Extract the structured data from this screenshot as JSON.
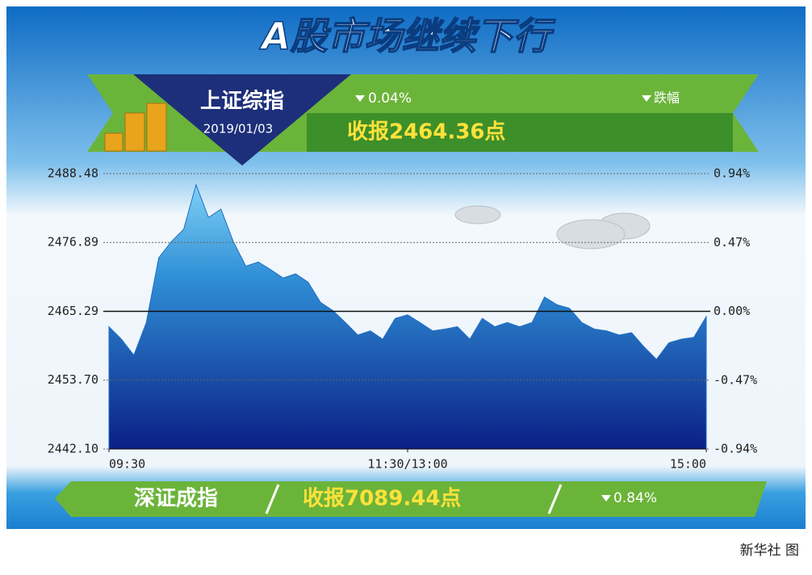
{
  "chart_data": {
    "type": "area",
    "title": "A股市场继续下行",
    "index_name": "上证综指",
    "date": "2019/01/03",
    "change": "0.04%",
    "change_label": "跌幅",
    "close_text": "收报2464.36点",
    "secondary_index_name": "深证成指",
    "secondary_close_text": "收报7089.44点",
    "secondary_change": "0.84%",
    "credit": "新华社 图",
    "x": [
      0,
      5,
      10,
      15,
      20,
      25,
      30,
      35,
      40,
      45,
      50,
      55,
      60,
      65,
      70,
      75,
      80,
      85,
      90,
      95,
      100,
      105,
      110,
      115,
      120,
      125,
      130,
      135,
      140,
      145,
      150,
      155,
      160,
      165,
      170,
      175,
      180,
      185,
      190,
      195,
      200,
      205,
      210,
      215,
      220,
      225,
      230,
      235,
      240
    ],
    "series": [
      {
        "color": "#1e6fc4",
        "values": [
          2462.7,
          2460.6,
          2457.9,
          2463.4,
          2474.3,
          2477.0,
          2479.1,
          2486.6,
          2481.1,
          2482.5,
          2477.0,
          2472.9,
          2473.6,
          2472.3,
          2470.9,
          2471.6,
          2470.2,
          2466.8,
          2465.4,
          2463.4,
          2461.3,
          2462.0,
          2460.6,
          2464.1,
          2464.7,
          2463.4,
          2462.0,
          2462.3,
          2462.7,
          2460.6,
          2464.1,
          2462.7,
          2463.4,
          2462.7,
          2463.4,
          2467.7,
          2466.4,
          2465.8,
          2463.4,
          2462.3,
          2462.0,
          2461.3,
          2461.7,
          2459.3,
          2457.2,
          2460.0,
          2460.6,
          2460.9,
          2464.4
        ]
      }
    ],
    "xlim": [
      0,
      240
    ],
    "xticks": [
      {
        "value": 0,
        "label": "09:30"
      },
      {
        "value": 120,
        "label": "11:30/13:00"
      },
      {
        "value": 240,
        "label": "15:00"
      }
    ],
    "ylim": [
      2442.1,
      2488.48
    ],
    "yticks": [
      2488.48,
      2476.89,
      2465.29,
      {
        "value": 2453.7,
        "label": "2453.70"
      },
      {
        "value": 2442.1,
        "label": "2442.10"
      }
    ],
    "y2lim": [
      -0.94,
      0.94
    ],
    "y2ticks": [
      {
        "value": 0.94,
        "label": "0.94%"
      },
      {
        "value": 0.47,
        "label": "0.47%"
      },
      {
        "value": 0,
        "label": "0.00%"
      },
      {
        "value": -0.47,
        "label": "-0.47%"
      },
      {
        "value": -0.94,
        "label": "-0.94%"
      }
    ],
    "grid": true
  }
}
